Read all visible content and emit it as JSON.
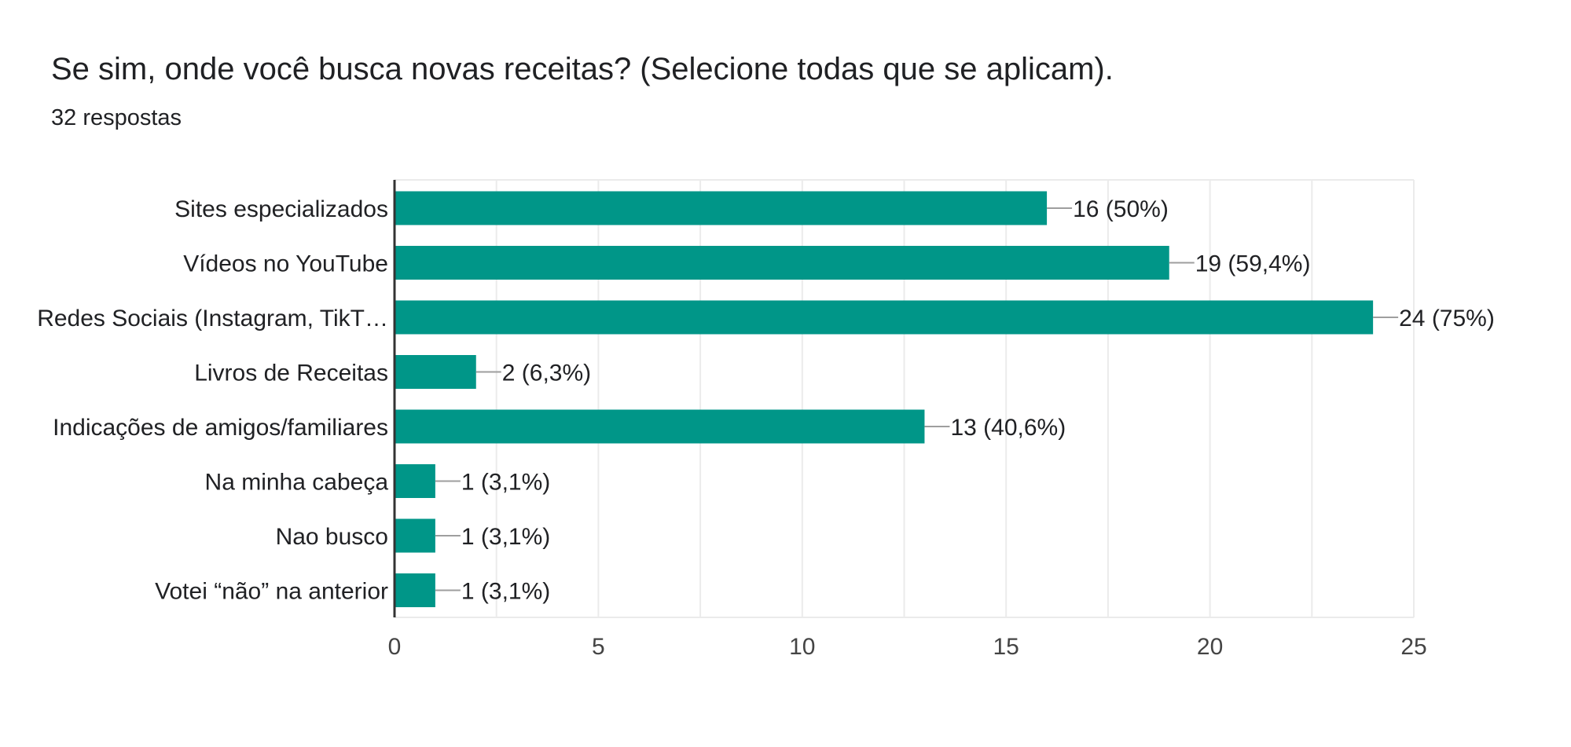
{
  "question": {
    "title": "Se sim, onde você busca novas receitas? (Selecione todas que se aplicam).",
    "responses": "32 respostas"
  },
  "colors": {
    "bar": "#009688",
    "grid": "#ebebeb",
    "axis": "#333333",
    "leader": "#9e9e9e",
    "text": "#202124",
    "tick_text": "#444444"
  },
  "chart_data": {
    "type": "bar",
    "orientation": "horizontal",
    "categories": [
      "Sites especializados",
      "Vídeos no YouTube",
      "Redes Sociais (Instagram, TikT…",
      "Livros de Receitas",
      "Indicações de amigos/familiares",
      "Na minha cabeça",
      "Nao busco",
      "Votei “não” na anterior"
    ],
    "values": [
      16,
      19,
      24,
      2,
      13,
      1,
      1,
      1
    ],
    "data_labels": [
      "16 (50%)",
      "19 (59,4%)",
      "24 (75%)",
      "2 (6,3%)",
      "13 (40,6%)",
      "1 (3,1%)",
      "1 (3,1%)",
      "1 (3,1%)"
    ],
    "xlim": [
      0,
      25
    ],
    "xticks": [
      "0",
      "5",
      "10",
      "15",
      "20",
      "25"
    ],
    "tick_values": [
      0,
      5,
      10,
      15,
      20,
      25
    ],
    "grid": true
  }
}
